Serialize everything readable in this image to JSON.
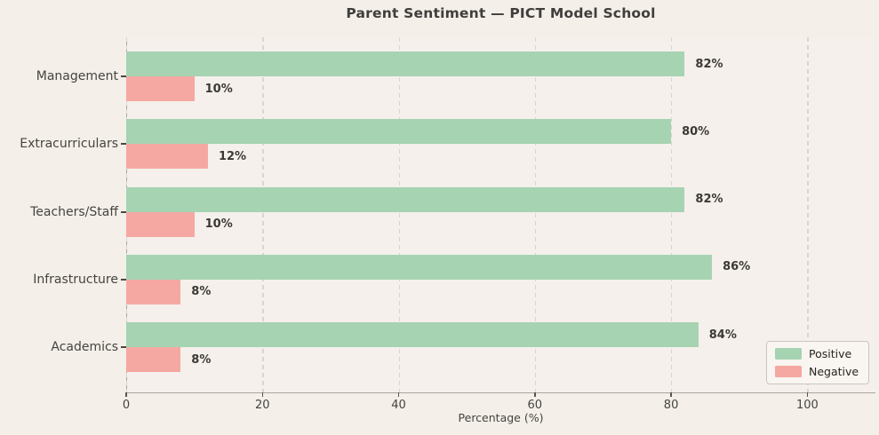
{
  "title": "Parent Sentiment — PICT Model School",
  "chart_data": {
    "type": "bar",
    "orientation": "horizontal",
    "title": "Parent Sentiment — PICT Model School",
    "categories": [
      "Management",
      "Extracurriculars",
      "Teachers/Staff",
      "Infrastructure",
      "Academics"
    ],
    "series": [
      {
        "name": "Positive",
        "color": "#a6d3b2",
        "values": [
          82,
          80,
          82,
          86,
          84
        ]
      },
      {
        "name": "Negative",
        "color": "#f5a8a2",
        "values": [
          10,
          12,
          10,
          8,
          8
        ]
      }
    ],
    "value_labels": [
      [
        "82%",
        "80%",
        "82%",
        "86%",
        "84%"
      ],
      [
        "10%",
        "12%",
        "10%",
        "8%",
        "8%"
      ]
    ],
    "xlabel": "Percentage (%)",
    "xlim": [
      0,
      110
    ],
    "xticks": [
      0,
      20,
      40,
      60,
      80,
      100
    ],
    "xtick_labels": [
      "0",
      "20",
      "40",
      "60",
      "80",
      "100"
    ],
    "grid": "dashed-vertical",
    "legend_position": "lower right",
    "legend_entries": [
      "Positive",
      "Negative"
    ]
  },
  "colors": {
    "figure_background": "#f4efe9",
    "plot_background": "#f5f0eb",
    "positive": "#a6d3b2",
    "negative": "#f5a8a2",
    "gridline": "#d9d5cf",
    "text": "#454440"
  }
}
